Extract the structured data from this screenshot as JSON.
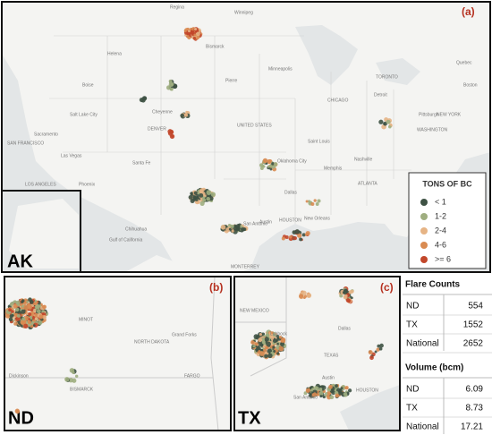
{
  "panels": {
    "a": {
      "label": "(a)",
      "places": [
        "Regina",
        "Winnipeg",
        "Helena",
        "Bismarck",
        "Pierre",
        "Minneapolis",
        "Boise",
        "Salt Lake City",
        "Cheyenne",
        "DENVER",
        "UNITED STATES",
        "Sacramento",
        "SAN FRANCISCO",
        "Las Vegas",
        "LOS ANGELES",
        "Phoenix",
        "Santa Fe",
        "Oklahoma City",
        "Dallas",
        "Austin",
        "San Antonio",
        "HOUSTON",
        "New Orleans",
        "Memphis",
        "Nashville",
        "ATLANTA",
        "Saint Louis",
        "CHICAGO",
        "Detroit",
        "TORONTO",
        "Pittsburgh",
        "WASHINGTON",
        "NEW YORK",
        "Boston",
        "Quebec",
        "Chihuahua",
        "MONTERREY",
        "Gulf of California"
      ]
    },
    "ak": {
      "label": "AK"
    },
    "b": {
      "label": "(b)",
      "region": "ND",
      "places": [
        "MINOT",
        "NORTH DAKOTA",
        "Grand Forks",
        "Dickinson",
        "BISMARCK",
        "FARGO"
      ]
    },
    "c": {
      "label": "(c)",
      "region": "TX",
      "places": [
        "NEW MEXICO",
        "Lubbock",
        "TEXAS",
        "Dallas",
        "Austin",
        "San Antonio",
        "HOUSTON"
      ]
    }
  },
  "legend": {
    "title": "TONS OF BC",
    "items": [
      {
        "label": "< 1",
        "color": "#3e5244"
      },
      {
        "label": "1-2",
        "color": "#9fae80"
      },
      {
        "label": "2-4",
        "color": "#e6b485"
      },
      {
        "label": "4-6",
        "color": "#d98b52"
      },
      {
        "label": ">= 6",
        "color": "#c2472b"
      }
    ]
  },
  "tables": {
    "flare_counts": {
      "title": "Flare Counts",
      "rows": [
        [
          "ND",
          554
        ],
        [
          "TX",
          1552
        ],
        [
          "National",
          2652
        ]
      ]
    },
    "volume": {
      "title": "Volume (bcm)",
      "rows": [
        [
          "ND",
          6.09
        ],
        [
          "TX",
          8.73
        ],
        [
          "National",
          17.21
        ]
      ]
    }
  }
}
